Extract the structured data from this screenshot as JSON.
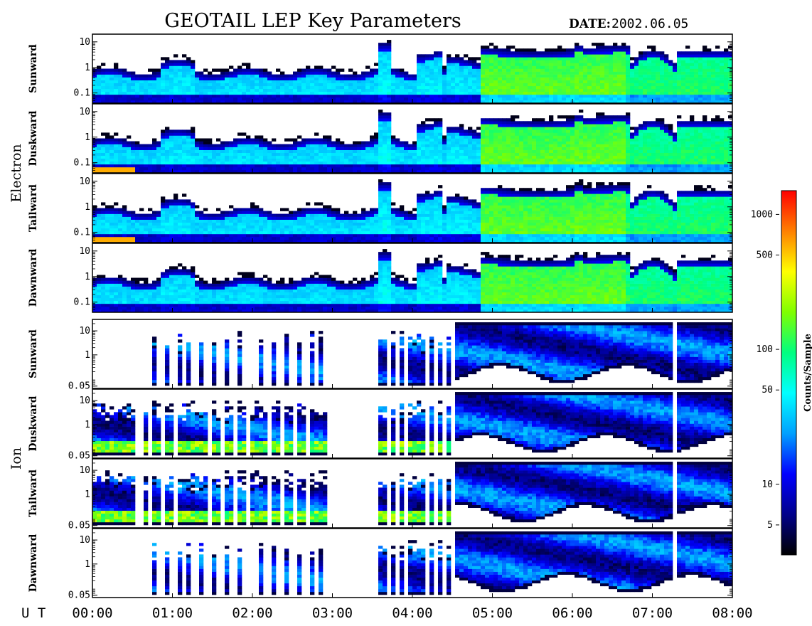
{
  "title": "GEOTAIL LEP Key Parameters",
  "date_label": "DATE:",
  "date_value": "2002.06.05",
  "xaxis_label": "U T",
  "colorbar": {
    "label": "Counts/Sample",
    "ticks": [
      "1000",
      "500",
      "100",
      "50",
      "10",
      "5"
    ],
    "tick_values": [
      1000,
      500,
      100,
      50,
      10,
      5
    ],
    "range": [
      3,
      1500
    ],
    "scale": "log",
    "colors": [
      "#000000",
      "#00008b",
      "#0000ff",
      "#00a0ff",
      "#00ffff",
      "#00ff80",
      "#80ff00",
      "#ffff00",
      "#ff8000",
      "#ff0000"
    ]
  },
  "chart_data": {
    "type": "heatmap",
    "title": "GEOTAIL LEP Key Parameters",
    "x_ticks": [
      "00:00",
      "01:00",
      "02:00",
      "03:00",
      "04:00",
      "05:00",
      "06:00",
      "07:00",
      "08:00"
    ],
    "x_range_hours": [
      0,
      8
    ],
    "groups": [
      {
        "name": "Electron",
        "y_scale": "log",
        "y_range": [
          0.04,
          20
        ],
        "y_ticks": [
          "10",
          "1",
          "0.1"
        ],
        "y_tick_values": [
          10,
          1,
          0.1
        ],
        "panels": [
          {
            "label": "Sunward"
          },
          {
            "label": "Duskward"
          },
          {
            "label": "Tailward"
          },
          {
            "label": "Dawnward"
          }
        ]
      },
      {
        "name": "Ion",
        "y_scale": "log",
        "y_range": [
          0.04,
          30
        ],
        "y_ticks": [
          "10",
          "1",
          "0.05"
        ],
        "y_tick_values": [
          10,
          1,
          0.05
        ],
        "panels": [
          {
            "label": "Sunward"
          },
          {
            "label": "Duskward"
          },
          {
            "label": "Tailward"
          },
          {
            "label": "Dawnward"
          }
        ]
      }
    ]
  }
}
